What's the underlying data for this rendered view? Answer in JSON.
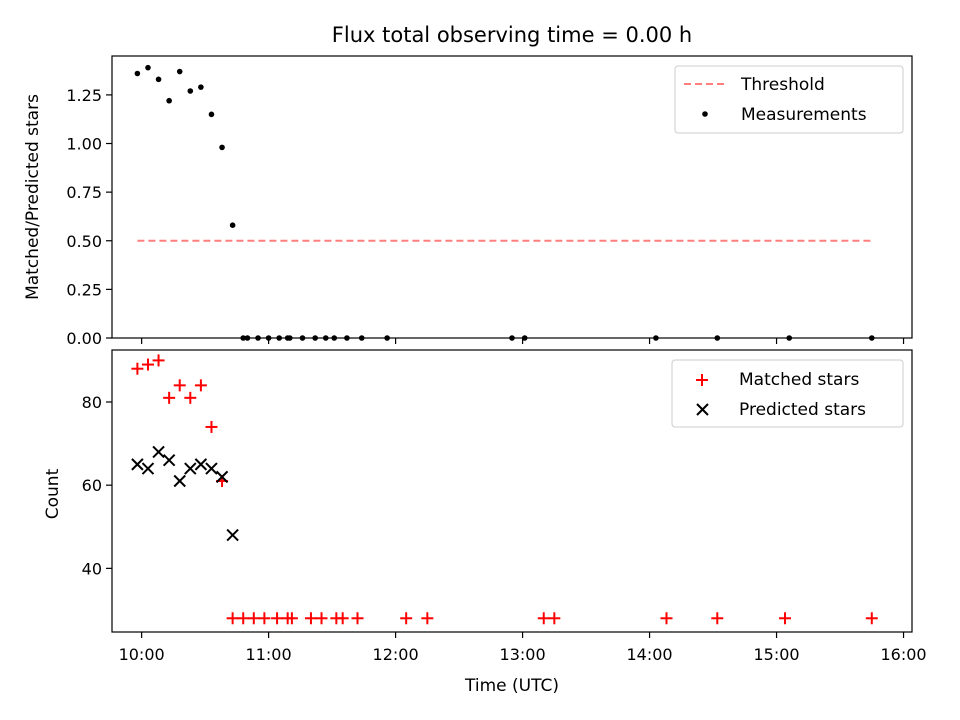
{
  "title": "Flux total observing time = 0.00 h",
  "xlabel": "Time (UTC)",
  "chart_data": [
    {
      "type": "scatter",
      "panel": "top",
      "title": "Flux total observing time = 0.00 h",
      "ylabel": "Matched/Predicted stars",
      "xlim": [
        "09:46",
        "16:04"
      ],
      "ylim": [
        0,
        1.45
      ],
      "yticks": [
        "0.00",
        "0.25",
        "0.50",
        "0.75",
        "1.00",
        "1.25"
      ],
      "ytick_values": [
        0,
        0.25,
        0.5,
        0.75,
        1.0,
        1.25
      ],
      "legend_position": "top-right",
      "colors": {
        "threshold": "#ff7f7f",
        "measurements": "#000000"
      },
      "series": [
        {
          "name": "Threshold",
          "style": "dashed-line",
          "x": [
            "09:58",
            "15:46"
          ],
          "y": [
            0.5,
            0.5
          ]
        },
        {
          "name": "Measurements",
          "style": "dot",
          "x": [
            "09:58",
            "10:03",
            "10:08",
            "10:13",
            "10:18",
            "10:23",
            "10:28",
            "10:33",
            "10:38",
            "10:43",
            "10:48",
            "10:50",
            "10:55",
            "11:00",
            "11:05",
            "11:09",
            "11:10",
            "11:16",
            "11:22",
            "11:27",
            "11:31",
            "11:37",
            "11:44",
            "11:56",
            "12:55",
            "13:01",
            "14:03",
            "14:32",
            "15:06",
            "15:45"
          ],
          "y": [
            1.36,
            1.39,
            1.33,
            1.22,
            1.37,
            1.27,
            1.29,
            1.15,
            0.98,
            0.58,
            0,
            0,
            0,
            0,
            0,
            0,
            0,
            0,
            0,
            0,
            0,
            0,
            0,
            0,
            0,
            0,
            0,
            0,
            0,
            0
          ]
        }
      ]
    },
    {
      "type": "scatter",
      "panel": "bottom",
      "ylabel": "Count",
      "xlabel": "Time (UTC)",
      "xlim": [
        "09:46",
        "16:04"
      ],
      "ylim": [
        24.7,
        92.5
      ],
      "yticks": [
        "40",
        "60",
        "80"
      ],
      "ytick_values": [
        40,
        60,
        80
      ],
      "xticks": [
        "10:00",
        "11:00",
        "12:00",
        "13:00",
        "14:00",
        "15:00",
        "16:00"
      ],
      "legend_position": "top-right",
      "colors": {
        "matched": "#ff0000",
        "predicted": "#000000"
      },
      "series": [
        {
          "name": "Matched stars",
          "marker": "+",
          "x": [
            "09:58",
            "10:03",
            "10:08",
            "10:13",
            "10:18",
            "10:23",
            "10:28",
            "10:33",
            "10:38",
            "10:43",
            "10:48",
            "10:53",
            "10:58",
            "11:04",
            "11:09",
            "11:11",
            "11:20",
            "11:25",
            "11:32",
            "11:35",
            "11:42",
            "12:05",
            "12:15",
            "13:10",
            "13:15",
            "14:08",
            "14:32",
            "15:04",
            "15:45"
          ],
          "y": [
            88,
            89,
            90,
            81,
            84,
            81,
            84,
            74,
            61,
            28,
            28,
            28,
            28,
            28,
            28,
            28,
            28,
            28,
            28,
            28,
            28,
            28,
            28,
            28,
            28,
            28,
            28,
            28,
            28
          ]
        },
        {
          "name": "Predicted stars",
          "marker": "x",
          "x": [
            "09:58",
            "10:03",
            "10:08",
            "10:13",
            "10:18",
            "10:23",
            "10:28",
            "10:33",
            "10:38",
            "10:43"
          ],
          "y": [
            65,
            64,
            68,
            66,
            61,
            64,
            65,
            64,
            62,
            48
          ]
        }
      ]
    }
  ]
}
